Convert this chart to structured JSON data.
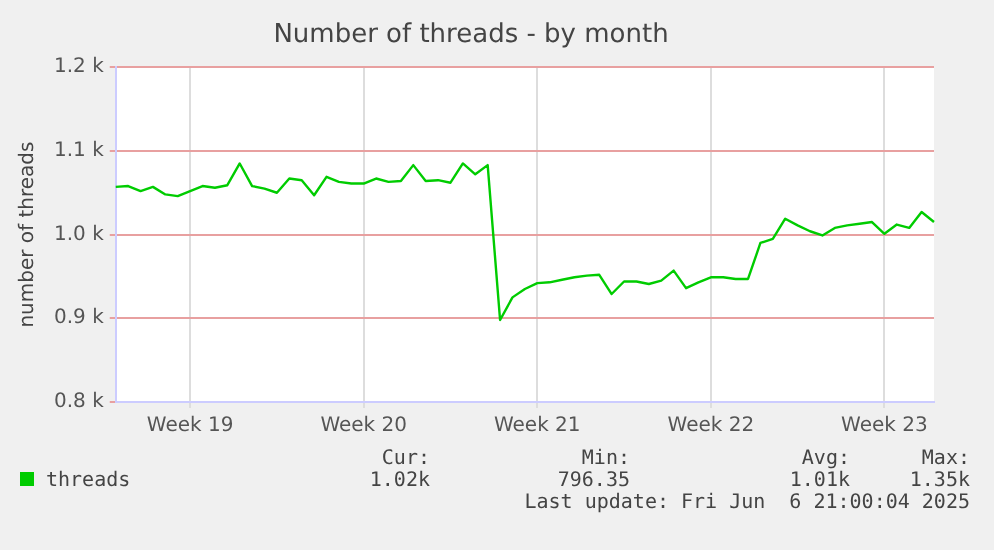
{
  "chart_data": {
    "type": "line",
    "title": "Number of threads - by month",
    "ylabel": "number of threads",
    "categories": [
      null,
      null,
      null,
      null,
      null,
      null,
      "Week 19",
      null,
      null,
      null,
      null,
      null,
      null,
      null,
      null,
      null,
      null,
      null,
      null,
      null,
      "Week 20",
      null,
      null,
      null,
      null,
      null,
      null,
      null,
      null,
      null,
      null,
      null,
      null,
      null,
      "Week 21",
      null,
      null,
      null,
      null,
      null,
      null,
      null,
      null,
      null,
      null,
      null,
      null,
      null,
      "Week 22",
      null,
      null,
      null,
      null,
      null,
      null,
      null,
      null,
      null,
      null,
      null,
      null,
      null,
      "Week 23",
      null,
      null,
      null,
      null
    ],
    "ylim": [
      0.8,
      1.2
    ],
    "yticks": [
      {
        "value": 0.8,
        "label": "0.8 k"
      },
      {
        "value": 0.9,
        "label": "0.9 k"
      },
      {
        "value": 1.0,
        "label": "1.0 k"
      },
      {
        "value": 1.1,
        "label": "1.1 k"
      },
      {
        "value": 1.2,
        "label": "1.2 k"
      }
    ],
    "grid": true,
    "legend": "bottom left",
    "marker": "none",
    "line_style": "solid",
    "series": [
      {
        "name": "threads",
        "color": "#00cc00",
        "values": [
          1.057,
          1.058,
          1.052,
          1.057,
          1.048,
          1.046,
          1.052,
          1.058,
          1.056,
          1.059,
          1.085,
          1.058,
          1.055,
          1.05,
          1.067,
          1.065,
          1.047,
          1.069,
          1.063,
          1.061,
          1.061,
          1.067,
          1.063,
          1.064,
          1.083,
          1.064,
          1.065,
          1.062,
          1.085,
          1.072,
          1.083,
          0.898,
          0.925,
          0.935,
          0.942,
          0.943,
          0.946,
          0.949,
          0.951,
          0.952,
          0.929,
          0.944,
          0.944,
          0.941,
          0.945,
          0.957,
          0.936,
          0.943,
          0.949,
          0.949,
          0.947,
          0.947,
          0.99,
          0.995,
          1.019,
          1.011,
          1.004,
          0.999,
          1.008,
          1.011,
          1.013,
          1.015,
          1.001,
          1.012,
          1.008,
          1.027,
          1.015
        ]
      }
    ],
    "annotations": [
      "Cur:",
      "1.02k",
      "Min:",
      "796.35",
      "Avg:",
      "1.01k",
      "Max:",
      "1.35k",
      "Last update: Fri Jun  6 21:00:04 2025"
    ]
  }
}
